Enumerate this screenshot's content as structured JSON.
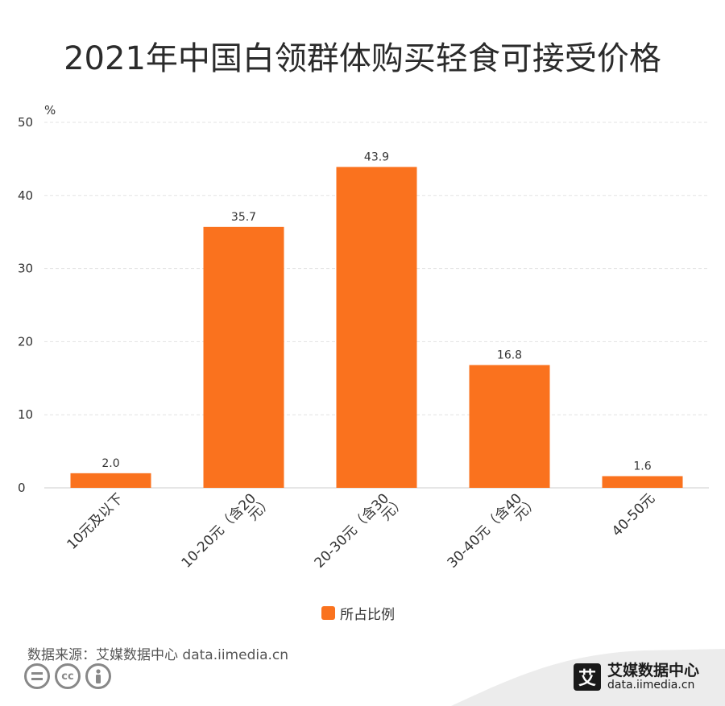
{
  "title": "2021年中国白领群体购买轻食可接受价格",
  "source_text": "数据来源：艾媒数据中心 data.iimedia.cn",
  "brand": {
    "name": "艾媒数据中心",
    "url": "data.iimedia.cn",
    "mark": "艾"
  },
  "license_icons": [
    "equals-icon",
    "cc-icon",
    "person-icon"
  ],
  "colors": {
    "bar": "#FA721E",
    "grid": "#e3e3e3",
    "axis": "#cccccc"
  },
  "chart_data": {
    "type": "bar",
    "unit_label": "%",
    "categories": [
      "10元及以下",
      "10-20元（含20元）",
      "20-30元（含30元）",
      "30-40元（含40元）",
      "40-50元"
    ],
    "category_lines": [
      [
        "10元及以下"
      ],
      [
        "10-20元（含20",
        "元）"
      ],
      [
        "20-30元（含30",
        "元）"
      ],
      [
        "30-40元（含40",
        "元）"
      ],
      [
        "40-50元"
      ]
    ],
    "series": [
      {
        "name": "所占比例",
        "values": [
          2.0,
          35.7,
          43.9,
          16.8,
          1.6
        ]
      }
    ],
    "data_labels": [
      "2.0",
      "35.7",
      "43.9",
      "16.8",
      "1.6"
    ],
    "ylim": [
      0,
      50
    ],
    "yticks": [
      0,
      10,
      20,
      30,
      40,
      50
    ],
    "grid": true,
    "legend_position": "bottom-center"
  }
}
